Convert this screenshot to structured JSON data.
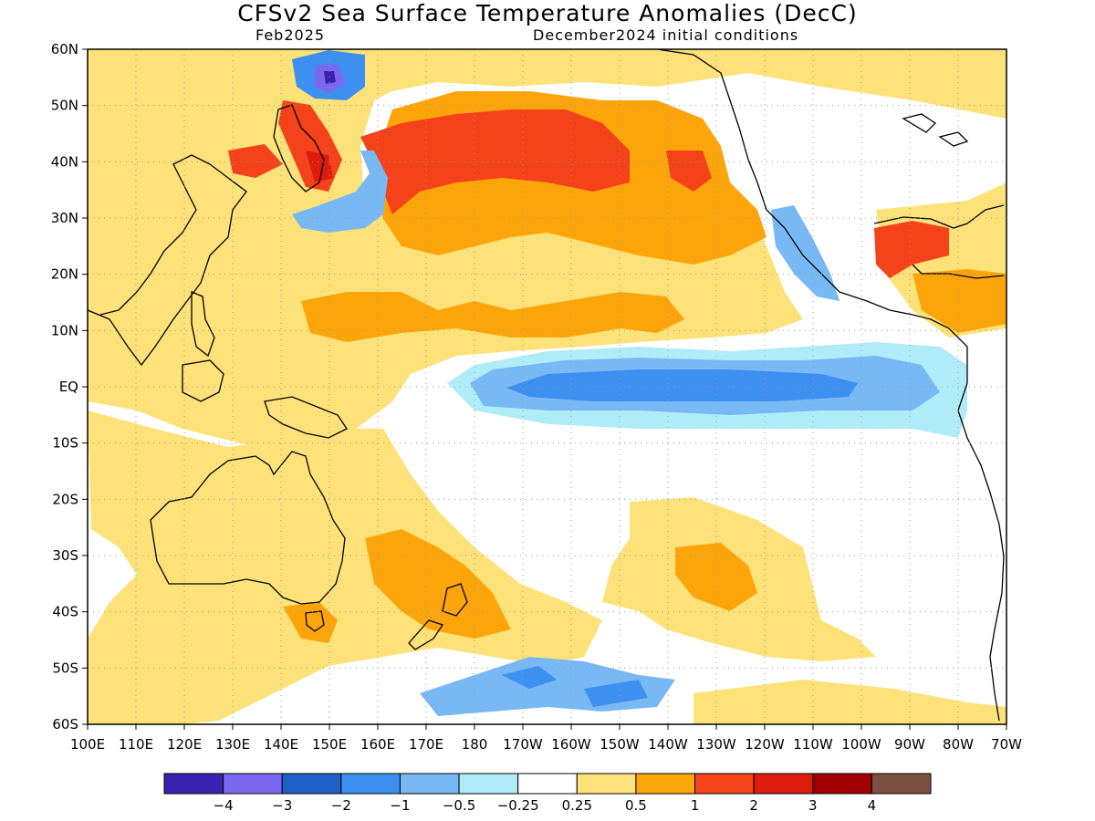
{
  "title": "CFSv2 Sea Surface Temperature Anomalies (DecC)",
  "subtitle_left": "Feb2025",
  "subtitle_right": "December2024 initial conditions",
  "lat_labels": [
    "60N",
    "50N",
    "40N",
    "30N",
    "20N",
    "10N",
    "EQ",
    "10S",
    "20S",
    "30S",
    "40S",
    "50S",
    "60S"
  ],
  "lon_labels": [
    "100E",
    "110E",
    "120E",
    "130E",
    "140E",
    "150E",
    "160E",
    "170E",
    "180",
    "170W",
    "160W",
    "150W",
    "140W",
    "130W",
    "120W",
    "110W",
    "100W",
    "90W",
    "80W",
    "70W"
  ],
  "colorbar": {
    "colors": [
      "#3a22b0",
      "#7b68ee",
      "#1e5fc8",
      "#3d8ff0",
      "#78b8f5",
      "#b0ecf8",
      "#ffffff",
      "#fde27a",
      "#fca50a",
      "#f4421a",
      "#dc1c0c",
      "#a00000",
      "#7a5040"
    ],
    "labels": [
      "−4",
      "−3",
      "−2",
      "−1",
      "−0.5",
      "−0.25",
      "0.25",
      "0.5",
      "1",
      "2",
      "3",
      "4"
    ]
  },
  "map_colors": {
    "land_outline": "#000000",
    "grid": "#9a9a9a"
  }
}
